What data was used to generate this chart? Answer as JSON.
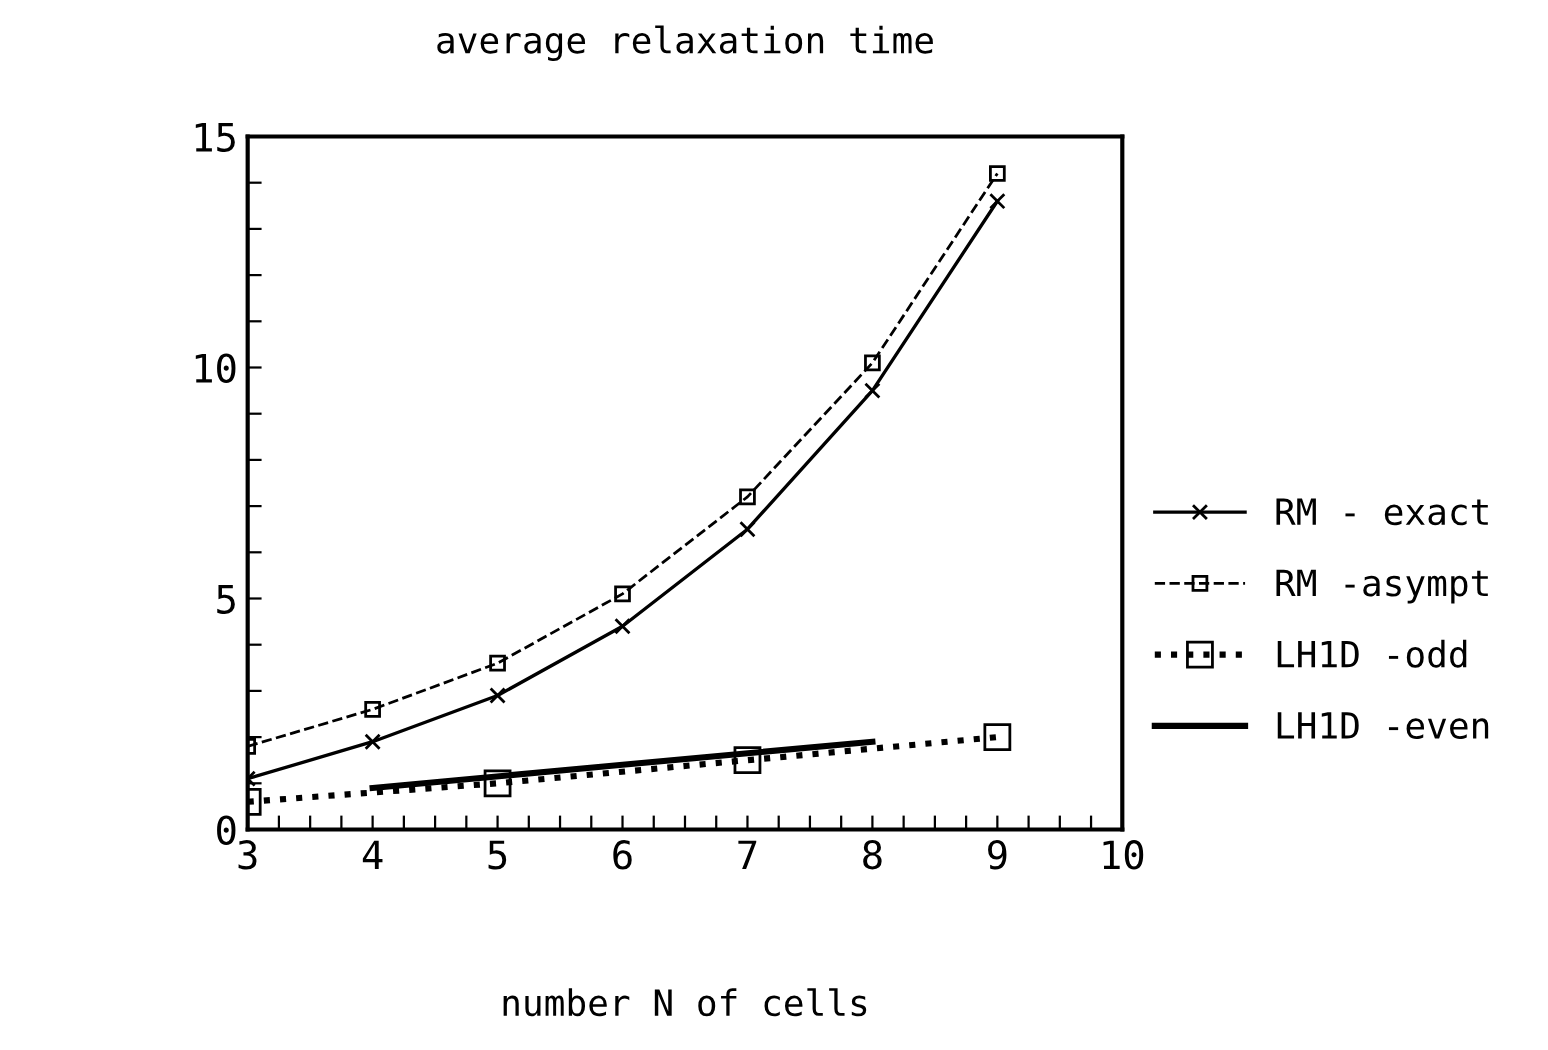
{
  "chart_data": {
    "type": "line",
    "title": "average relaxation time",
    "xlabel": "number N of cells",
    "x": [
      3,
      4,
      5,
      6,
      7,
      8,
      9
    ],
    "series": [
      {
        "name": "RM - exact",
        "color": "#000000",
        "line_style": "solid",
        "marker": "cross",
        "values": [
          1.1,
          1.9,
          2.9,
          4.4,
          6.5,
          9.5,
          13.6
        ]
      },
      {
        "name": "RM -asympt",
        "color": "#000000",
        "line_style": "dashed",
        "marker": "square",
        "values": [
          1.8,
          2.6,
          3.6,
          5.1,
          7.2,
          10.1,
          14.2
        ]
      },
      {
        "name": "LH1D -odd",
        "color": "#000000",
        "line_style": "dotted",
        "marker": "square",
        "x": [
          3,
          5,
          7,
          9
        ],
        "values": [
          0.6,
          1.0,
          1.5,
          2.0
        ]
      },
      {
        "name": "LH1D -even",
        "color": "#000000",
        "line_style": "solid",
        "marker": "none",
        "x": [
          4,
          6,
          8
        ],
        "values": [
          0.9,
          1.4,
          1.9
        ]
      }
    ],
    "xlim": [
      3,
      10
    ],
    "ylim": [
      0,
      15
    ],
    "xticks": [
      3,
      {
        "value": 3.25,
        "label": null
      },
      {
        "value": 3.5,
        "label": null
      },
      {
        "value": 3.75,
        "label": null
      },
      4,
      {
        "value": 4.25,
        "label": null
      },
      {
        "value": 4.5,
        "label": null
      },
      {
        "value": 4.75,
        "label": null
      },
      5,
      {
        "value": 5.25,
        "label": null
      },
      {
        "value": 5.5,
        "label": null
      },
      {
        "value": 5.75,
        "label": null
      },
      6,
      {
        "value": 6.25,
        "label": null
      },
      {
        "value": 6.5,
        "label": null
      },
      {
        "value": 6.75,
        "label": null
      },
      7,
      {
        "value": 7.25,
        "label": null
      },
      {
        "value": 7.5,
        "label": null
      },
      {
        "value": 7.75,
        "label": null
      },
      8,
      {
        "value": 8.25,
        "label": null
      },
      {
        "value": 8.5,
        "label": null
      },
      {
        "value": 8.75,
        "label": null
      },
      9,
      {
        "value": 9.25,
        "label": null
      },
      {
        "value": 9.5,
        "label": null
      },
      {
        "value": 9.75,
        "label": null
      },
      10
    ],
    "yticks": [
      0,
      {
        "value": 1,
        "label": null
      },
      {
        "value": 2,
        "label": null
      },
      {
        "value": 3,
        "label": null
      },
      {
        "value": 4,
        "label": null
      },
      5,
      {
        "value": 6,
        "label": null
      },
      {
        "value": 7,
        "label": null
      },
      {
        "value": 8,
        "label": null
      },
      {
        "value": 9,
        "label": null
      },
      10,
      {
        "value": 11,
        "label": null
      },
      {
        "value": 12,
        "label": null
      },
      {
        "value": 13,
        "label": null
      },
      {
        "value": 14,
        "label": null
      },
      15
    ],
    "grid": false,
    "legend": "right"
  }
}
